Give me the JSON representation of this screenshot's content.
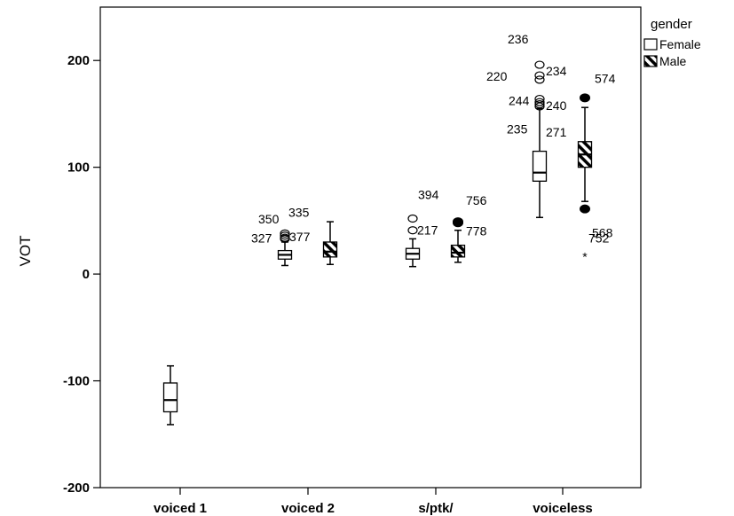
{
  "chart_data": {
    "type": "boxplot",
    "ylabel": "VOT",
    "xlabel": "",
    "ylim": [
      -200,
      250
    ],
    "yticks": [
      -200,
      -100,
      0,
      100,
      200
    ],
    "categories": [
      "voiced 1",
      "voiced 2",
      "s/ptk/",
      "voiceless"
    ],
    "legend": {
      "title": "gender",
      "position": "top-right",
      "entries": [
        {
          "name": "Female",
          "pattern": "white"
        },
        {
          "name": "Male",
          "pattern": "hatched"
        }
      ]
    },
    "series": [
      {
        "name": "Female",
        "pattern": "white",
        "boxes": [
          {
            "category": "voiced 1",
            "min": -141,
            "q1": -129,
            "median": -118,
            "q3": -102,
            "max": -86,
            "outliers": []
          },
          {
            "category": "voiced 2",
            "min": 8,
            "q1": 14,
            "median": 18,
            "q3": 22,
            "max": 30,
            "outliers": [
              {
                "value": 33,
                "label": "327",
                "marker": "circle"
              },
              {
                "value": 36,
                "label": "350",
                "marker": "circle"
              },
              {
                "value": 38,
                "label": "335",
                "marker": "circle"
              },
              {
                "value": 34,
                "label": "377",
                "marker": "circle"
              }
            ]
          },
          {
            "category": "s/ptk/",
            "min": 7,
            "q1": 14,
            "median": 19,
            "q3": 24,
            "max": 33,
            "outliers": [
              {
                "value": 52,
                "label": "394",
                "marker": "circle"
              },
              {
                "value": 41,
                "label": "217",
                "marker": "circle"
              }
            ]
          },
          {
            "category": "voiceless",
            "min": 53,
            "q1": 87,
            "median": 95,
            "q3": 115,
            "max": 155,
            "outliers": [
              {
                "value": 196,
                "label": "236",
                "marker": "circle"
              },
              {
                "value": 186,
                "label": "234",
                "marker": "circle"
              },
              {
                "value": 182,
                "label": "220",
                "marker": "circle"
              },
              {
                "value": 164,
                "label": "244",
                "marker": "circle"
              },
              {
                "value": 161,
                "label": "240",
                "marker": "circle"
              },
              {
                "value": 159,
                "label": "235",
                "marker": "circle"
              },
              {
                "value": 157,
                "label": "271",
                "marker": "circle"
              }
            ]
          }
        ]
      },
      {
        "name": "Male",
        "pattern": "hatched",
        "boxes": [
          {
            "category": "voiced 2",
            "min": 9,
            "q1": 16,
            "median": 21,
            "q3": 30,
            "max": 49,
            "outliers": []
          },
          {
            "category": "s/ptk/",
            "min": 11,
            "q1": 16,
            "median": 20,
            "q3": 27,
            "max": 41,
            "outliers": [
              {
                "value": 49,
                "label": "756",
                "marker": "filled"
              },
              {
                "value": 48,
                "label": "778",
                "marker": "filled"
              }
            ]
          },
          {
            "category": "voiceless",
            "min": 68,
            "q1": 100,
            "median": 112,
            "q3": 124,
            "max": 156,
            "outliers": [
              {
                "value": 165,
                "label": "574",
                "marker": "filled"
              },
              {
                "value": 61,
                "label": "568",
                "marker": "filled"
              },
              {
                "value": 17,
                "label": "752",
                "marker": "star"
              }
            ]
          }
        ]
      }
    ],
    "grid": false
  }
}
